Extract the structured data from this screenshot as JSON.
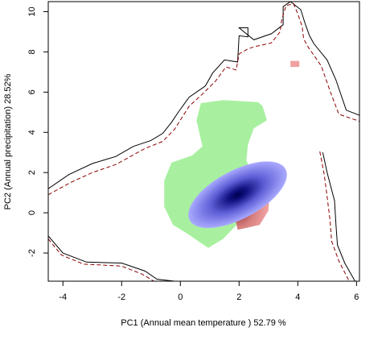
{
  "chart_data": {
    "type": "heatmap",
    "xlabel": "PC1 (Annual mean temperature ) 52.79 %",
    "ylabel": "PC2 (Annual precipitation) 28.52%",
    "xlim": [
      -4.5,
      6.1
    ],
    "ylim": [
      -3.4,
      10.5
    ],
    "x_ticks": [
      -4,
      -2,
      0,
      2,
      4,
      6
    ],
    "y_ticks": [
      -2,
      0,
      2,
      4,
      6,
      8,
      10
    ],
    "grid": false,
    "legend": "none",
    "colors": {
      "region_green": "#a8f0a0",
      "region_blue_center": "#000060",
      "region_blue_edge": "#a9a9ff",
      "region_red_center": "#3a0505",
      "region_red_edge": "#f0a0a0",
      "contour_dark_red": "#8b0000",
      "contour_black": "#000000"
    },
    "regions": [
      {
        "color": "green",
        "outline": [
          [
            0.7,
            5.45
          ],
          [
            1.45,
            5.6
          ],
          [
            2.65,
            5.5
          ],
          [
            2.8,
            5.3
          ],
          [
            2.95,
            4.6
          ],
          [
            2.5,
            4.2
          ],
          [
            2.3,
            3.4
          ],
          [
            2.25,
            2.6
          ],
          [
            2.45,
            2.0
          ],
          [
            2.55,
            1.2
          ],
          [
            2.05,
            -0.4
          ],
          [
            1.45,
            -1.3
          ],
          [
            0.95,
            -1.75
          ],
          [
            0.2,
            -1.0
          ],
          [
            -0.25,
            -0.6
          ],
          [
            -0.55,
            0.3
          ],
          [
            -0.55,
            1.6
          ],
          [
            -0.3,
            2.5
          ],
          [
            0.4,
            2.85
          ],
          [
            0.75,
            3.3
          ],
          [
            0.55,
            4.6
          ]
        ]
      },
      {
        "color": "red",
        "outline": [
          [
            2.3,
            2.35
          ],
          [
            2.85,
            2.0
          ],
          [
            3.05,
            1.2
          ],
          [
            3.0,
            0.1
          ],
          [
            2.7,
            -0.6
          ],
          [
            1.95,
            -0.85
          ],
          [
            1.8,
            0.2
          ],
          [
            2.0,
            1.7
          ]
        ]
      },
      {
        "color": "red",
        "outline": [
          [
            3.75,
            7.25
          ],
          [
            4.05,
            7.25
          ],
          [
            4.05,
            7.55
          ],
          [
            3.75,
            7.55
          ]
        ]
      },
      {
        "color": "blue",
        "center": [
          1.95,
          0.9
        ],
        "rx": 1.85,
        "ry": 1.2,
        "rotation_deg": 28
      }
    ],
    "contours": [
      {
        "style": "solid",
        "color": "black",
        "points": [
          [
            -4.5,
            1.2
          ],
          [
            -3.8,
            1.9
          ],
          [
            -3.0,
            2.45
          ],
          [
            -2.2,
            2.8
          ],
          [
            -1.6,
            3.3
          ],
          [
            -1.0,
            3.6
          ],
          [
            -0.6,
            3.95
          ],
          [
            -0.3,
            4.5
          ],
          [
            -0.05,
            5.05
          ],
          [
            0.3,
            5.75
          ],
          [
            0.85,
            6.3
          ],
          [
            1.1,
            6.95
          ],
          [
            1.5,
            7.6
          ],
          [
            1.95,
            7.5
          ],
          [
            2.0,
            8.8
          ],
          [
            2.3,
            8.75
          ],
          [
            2.3,
            9.2
          ],
          [
            2.0,
            9.2
          ],
          [
            2.5,
            8.6
          ],
          [
            3.1,
            8.9
          ],
          [
            3.5,
            9.35
          ],
          [
            3.5,
            10.25
          ],
          [
            3.75,
            10.5
          ],
          [
            4.1,
            10.1
          ],
          [
            4.25,
            9.4
          ],
          [
            4.4,
            8.8
          ],
          [
            4.55,
            8.4
          ],
          [
            5.0,
            7.6
          ],
          [
            5.3,
            6.6
          ],
          [
            5.65,
            5.1
          ],
          [
            6.1,
            4.85
          ]
        ]
      },
      {
        "style": "solid",
        "color": "black",
        "points": [
          [
            4.85,
            3.0
          ],
          [
            5.0,
            2.0
          ],
          [
            5.25,
            0.6
          ],
          [
            5.3,
            -0.6
          ],
          [
            5.35,
            -1.6
          ],
          [
            5.6,
            -2.5
          ],
          [
            5.95,
            -3.4
          ]
        ]
      },
      {
        "style": "dashed",
        "color": "dark-red",
        "points": [
          [
            -4.5,
            0.9
          ],
          [
            -3.75,
            1.5
          ],
          [
            -3.0,
            2.0
          ],
          [
            -2.2,
            2.4
          ],
          [
            -1.2,
            3.2
          ],
          [
            -0.6,
            3.55
          ],
          [
            -0.2,
            4.15
          ],
          [
            0.3,
            5.3
          ],
          [
            0.75,
            5.9
          ],
          [
            1.2,
            6.55
          ],
          [
            1.55,
            7.25
          ],
          [
            1.9,
            7.1
          ],
          [
            2.0,
            7.9
          ],
          [
            2.3,
            8.15
          ],
          [
            2.5,
            8.25
          ],
          [
            3.1,
            8.45
          ],
          [
            3.4,
            9.0
          ],
          [
            3.45,
            9.6
          ],
          [
            3.6,
            10.3
          ],
          [
            3.85,
            10.4
          ],
          [
            4.0,
            9.9
          ],
          [
            4.15,
            9.25
          ],
          [
            4.2,
            8.65
          ],
          [
            4.35,
            8.25
          ],
          [
            4.8,
            7.3
          ],
          [
            5.1,
            6.05
          ],
          [
            5.4,
            4.9
          ],
          [
            6.1,
            4.55
          ]
        ]
      },
      {
        "style": "dashed",
        "color": "dark-red",
        "points": [
          [
            4.75,
            3.05
          ],
          [
            4.9,
            1.9
          ],
          [
            5.0,
            0.8
          ],
          [
            5.1,
            -0.4
          ],
          [
            5.15,
            -1.4
          ],
          [
            5.4,
            -2.4
          ],
          [
            5.75,
            -3.4
          ]
        ]
      },
      {
        "style": "solid",
        "color": "black",
        "points": [
          [
            -4.5,
            -1.15
          ],
          [
            -4.0,
            -2.0
          ],
          [
            -3.2,
            -2.45
          ],
          [
            -2.0,
            -2.5
          ],
          [
            -1.2,
            -2.9
          ],
          [
            -0.8,
            -3.3
          ],
          [
            -0.2,
            -3.4
          ]
        ]
      },
      {
        "style": "dashed",
        "color": "dark-red",
        "points": [
          [
            -4.5,
            -1.3
          ],
          [
            -4.05,
            -2.1
          ],
          [
            -3.3,
            -2.55
          ],
          [
            -2.0,
            -2.65
          ],
          [
            -1.3,
            -3.05
          ],
          [
            -0.9,
            -3.4
          ]
        ]
      }
    ]
  }
}
